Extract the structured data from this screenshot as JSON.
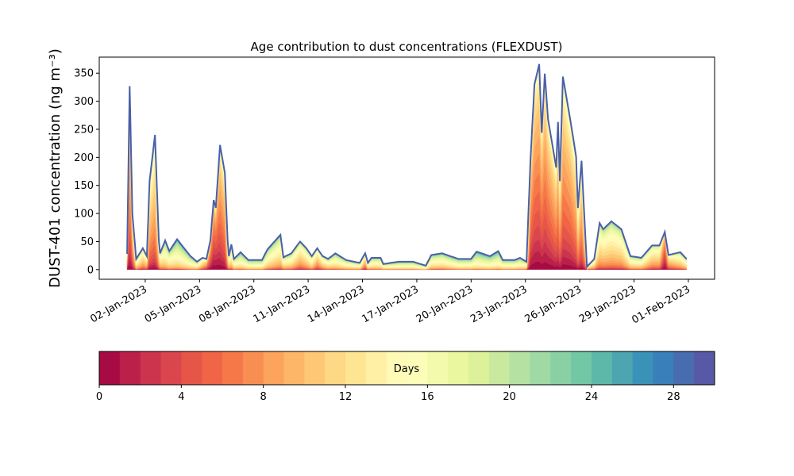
{
  "chart_data": {
    "type": "area",
    "stacked": true,
    "title": "Age contribution to dust concentrations (FLEXDUST)",
    "ylabel": "DUST-401 concentration (ng m⁻³)",
    "xlabel": "",
    "ylim": [
      -17.2,
      378.6
    ],
    "xlim": [
      -1.54,
      32.45
    ],
    "yticks": [
      0,
      50,
      100,
      150,
      200,
      250,
      300,
      350
    ],
    "xticks": [
      {
        "v": 1,
        "label": "02-Jan-2023"
      },
      {
        "v": 4,
        "label": "05-Jan-2023"
      },
      {
        "v": 7,
        "label": "08-Jan-2023"
      },
      {
        "v": 10,
        "label": "11-Jan-2023"
      },
      {
        "v": 13,
        "label": "14-Jan-2023"
      },
      {
        "v": 16,
        "label": "17-Jan-2023"
      },
      {
        "v": 19,
        "label": "20-Jan-2023"
      },
      {
        "v": 22,
        "label": "23-Jan-2023"
      },
      {
        "v": 25,
        "label": "26-Jan-2023"
      },
      {
        "v": 28,
        "label": "29-Jan-2023"
      },
      {
        "v": 31,
        "label": "01-Feb-2023"
      }
    ],
    "x_unit": "days (tick values)",
    "series_description": "30 stacked age classes (0-30 days); total and approximate mean age per sample",
    "points": [
      [
        0,
        28,
        9
      ],
      [
        0.14,
        327,
        8
      ],
      [
        0.29,
        100,
        9
      ],
      [
        0.5,
        19,
        14
      ],
      [
        0.87,
        38,
        12
      ],
      [
        1.09,
        24,
        12
      ],
      [
        1.24,
        158,
        10
      ],
      [
        1.54,
        240,
        10
      ],
      [
        1.75,
        53,
        12
      ],
      [
        1.82,
        29,
        13
      ],
      [
        2.1,
        52,
        15
      ],
      [
        2.33,
        33,
        15
      ],
      [
        2.76,
        54,
        16
      ],
      [
        3.2,
        36,
        16
      ],
      [
        3.5,
        24,
        16
      ],
      [
        3.86,
        14,
        15
      ],
      [
        4.16,
        21,
        12
      ],
      [
        4.38,
        19,
        9
      ],
      [
        4.6,
        52,
        6
      ],
      [
        4.78,
        124,
        5
      ],
      [
        4.9,
        110,
        5
      ],
      [
        5.13,
        222,
        7
      ],
      [
        5.4,
        172,
        8
      ],
      [
        5.55,
        52,
        12
      ],
      [
        5.62,
        24,
        13
      ],
      [
        5.76,
        45,
        14
      ],
      [
        5.9,
        19,
        15
      ],
      [
        6.27,
        31,
        16
      ],
      [
        6.7,
        17,
        16
      ],
      [
        7.45,
        17,
        16
      ],
      [
        7.75,
        36,
        15
      ],
      [
        8.47,
        62,
        14
      ],
      [
        8.63,
        22,
        14
      ],
      [
        9.07,
        29,
        14
      ],
      [
        9.55,
        50,
        12
      ],
      [
        9.9,
        38,
        13
      ],
      [
        10.2,
        24,
        14
      ],
      [
        10.5,
        38,
        11
      ],
      [
        10.8,
        24,
        13
      ],
      [
        11.1,
        19,
        14
      ],
      [
        11.5,
        29,
        15
      ],
      [
        12.1,
        17,
        15
      ],
      [
        12.85,
        12,
        15
      ],
      [
        13.15,
        29,
        10
      ],
      [
        13.3,
        12,
        14
      ],
      [
        13.5,
        21,
        15
      ],
      [
        14.0,
        21,
        15
      ],
      [
        14.15,
        10,
        15
      ],
      [
        15.0,
        14,
        16
      ],
      [
        15.8,
        14,
        16
      ],
      [
        16.5,
        7,
        16
      ],
      [
        16.8,
        26,
        15
      ],
      [
        17.4,
        29,
        15
      ],
      [
        18.3,
        19,
        16
      ],
      [
        19.0,
        19,
        16
      ],
      [
        19.3,
        32,
        17
      ],
      [
        20.04,
        24,
        17
      ],
      [
        20.5,
        33,
        17
      ],
      [
        20.75,
        17,
        16
      ],
      [
        21.4,
        17,
        16
      ],
      [
        21.7,
        21,
        16
      ],
      [
        22.06,
        14,
        15
      ],
      [
        22.28,
        196,
        7
      ],
      [
        22.5,
        330,
        7
      ],
      [
        22.76,
        366,
        7
      ],
      [
        22.9,
        244,
        7
      ],
      [
        23.07,
        349,
        7
      ],
      [
        23.25,
        268,
        7
      ],
      [
        23.7,
        182,
        8
      ],
      [
        23.8,
        263,
        8
      ],
      [
        23.9,
        158,
        9
      ],
      [
        24.07,
        344,
        8
      ],
      [
        24.5,
        263,
        8
      ],
      [
        24.8,
        201,
        9
      ],
      [
        24.9,
        110,
        10
      ],
      [
        25.1,
        194,
        9
      ],
      [
        25.4,
        5,
        12
      ],
      [
        25.8,
        19,
        13
      ],
      [
        26.1,
        83,
        13
      ],
      [
        26.3,
        72,
        13
      ],
      [
        26.75,
        86,
        13
      ],
      [
        27.3,
        72,
        13
      ],
      [
        27.8,
        24,
        14
      ],
      [
        28.4,
        21,
        14
      ],
      [
        29.0,
        43,
        12
      ],
      [
        29.4,
        43,
        12
      ],
      [
        29.7,
        67,
        4
      ],
      [
        29.9,
        26,
        10
      ],
      [
        30.55,
        31,
        13
      ],
      [
        30.9,
        19,
        14
      ]
    ],
    "colorbar": {
      "label": "Days",
      "range": [
        0,
        30
      ],
      "ticks": [
        0,
        4,
        8,
        12,
        16,
        20,
        24,
        28
      ],
      "levels": 30,
      "colormap_anchors": [
        "#9e0142",
        "#d53e4f",
        "#f46d43",
        "#fdae61",
        "#fee08b",
        "#ffffbf",
        "#e6f598",
        "#abdda4",
        "#66c2a5",
        "#3288bd",
        "#5e4fa2"
      ]
    }
  }
}
